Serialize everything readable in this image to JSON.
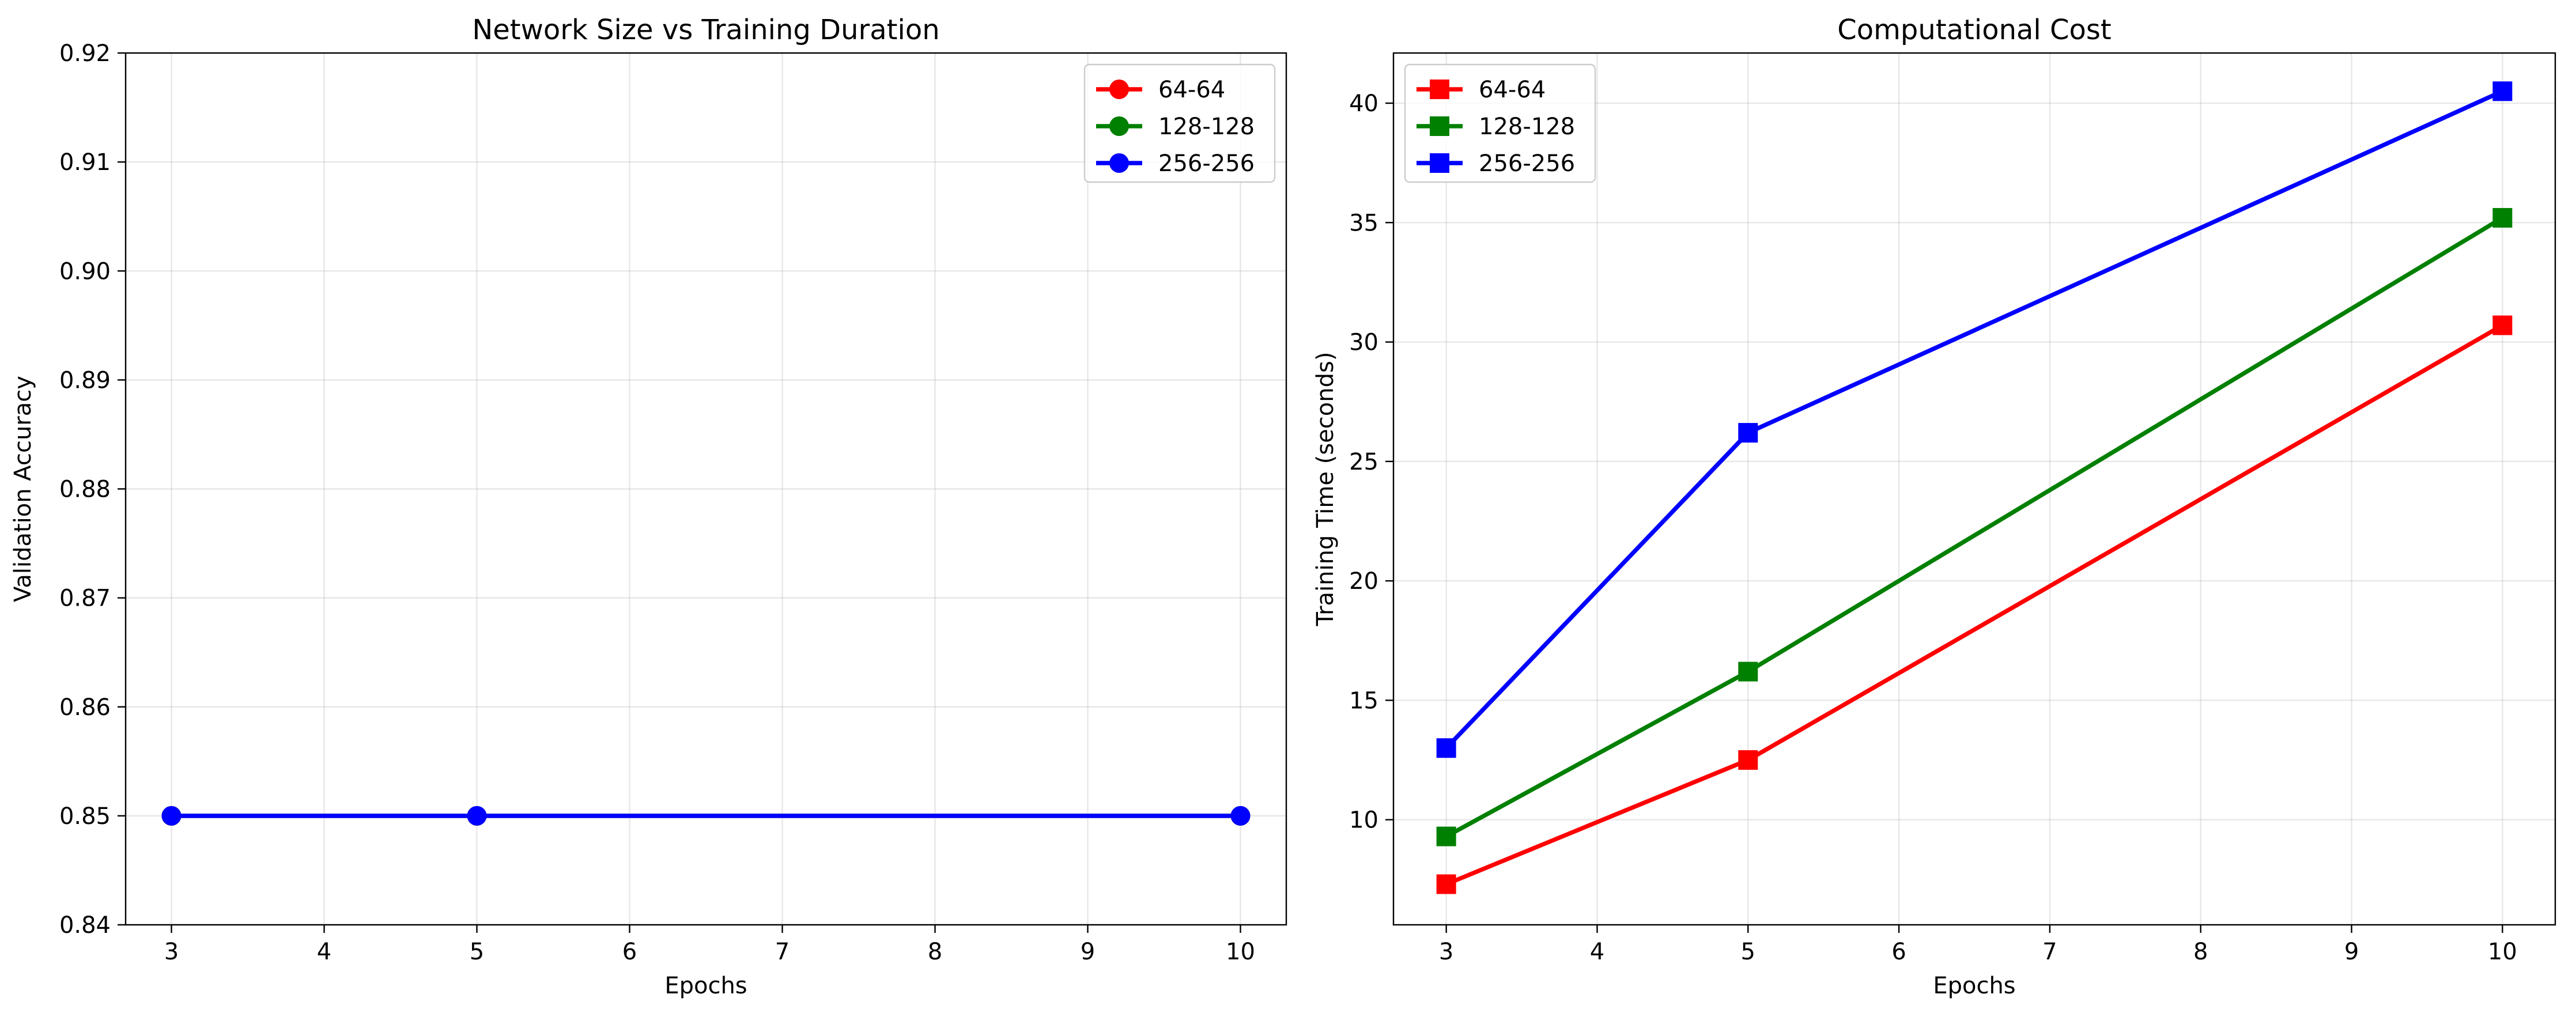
{
  "chart_data": [
    {
      "type": "line",
      "title": "Network Size vs Training Duration",
      "xlabel": "Epochs",
      "ylabel": "Validation Accuracy",
      "xlim": [
        2.7,
        10.3
      ],
      "ylim": [
        0.84,
        0.92
      ],
      "xticks": [
        3,
        4,
        5,
        6,
        7,
        8,
        9,
        10
      ],
      "yticks": [
        0.84,
        0.85,
        0.86,
        0.87,
        0.88,
        0.89,
        0.9,
        0.91,
        0.92
      ],
      "ytick_format": 2,
      "grid": true,
      "legend_position": "top-right",
      "marker": "circle",
      "x": [
        3,
        5,
        10
      ],
      "series": [
        {
          "name": "64-64",
          "color": "#ff0000",
          "values": [
            0.85,
            0.85,
            0.85
          ]
        },
        {
          "name": "128-128",
          "color": "#008000",
          "values": [
            0.85,
            0.85,
            0.85
          ]
        },
        {
          "name": "256-256",
          "color": "#0000ff",
          "values": [
            0.85,
            0.85,
            0.85
          ]
        }
      ]
    },
    {
      "type": "line",
      "title": "Computational Cost",
      "xlabel": "Epochs",
      "ylabel": "Training Time (seconds)",
      "xlim": [
        2.65,
        10.35
      ],
      "ylim": [
        5.6,
        42.1
      ],
      "xticks": [
        3,
        4,
        5,
        6,
        7,
        8,
        9,
        10
      ],
      "yticks": [
        10,
        15,
        20,
        25,
        30,
        35,
        40
      ],
      "ytick_format": 0,
      "grid": true,
      "legend_position": "top-left",
      "marker": "square",
      "x": [
        3,
        5,
        10
      ],
      "series": [
        {
          "name": "64-64",
          "color": "#ff0000",
          "values": [
            7.3,
            12.5,
            30.7
          ]
        },
        {
          "name": "128-128",
          "color": "#008000",
          "values": [
            9.3,
            16.2,
            35.2
          ]
        },
        {
          "name": "256-256",
          "color": "#0000ff",
          "values": [
            13.0,
            26.2,
            40.5
          ]
        }
      ]
    }
  ]
}
